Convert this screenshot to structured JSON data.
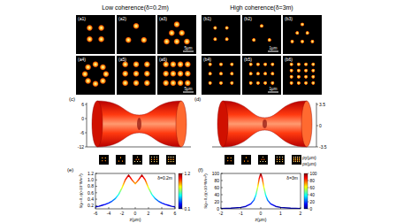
{
  "headers": [
    "Low coherence(δ=0.2m)",
    "High coherence(δ=3m)"
  ],
  "panels_a": {
    "labels": [
      "(a1)",
      "(a2)",
      "(a3)",
      "(a4)",
      "(a5)",
      "(a6)"
    ],
    "scale_bar": "5μm"
  },
  "panels_b": {
    "labels": [
      "(b1)",
      "(b2)",
      "(b3)",
      "(b4)",
      "(b5)",
      "(b6)"
    ],
    "scale_bar": "1μm"
  },
  "panel_c": {
    "label": "(c)",
    "ticks": [
      "6",
      "0",
      "-6",
      "-12"
    ]
  },
  "panel_d": {
    "label": "(d)",
    "ticks": [
      "3.5",
      "0",
      "-3.5"
    ],
    "axis_labels": [
      "ρy(μm)",
      "ρx(μm)"
    ]
  },
  "chart_data": [
    {
      "type": "line",
      "label": "(e)",
      "annotation": "δ=0.2m",
      "xlabel": "z(μm)",
      "ylabel": "S(ρ=0,z)(×10⁷W/m²)",
      "x": [
        -6,
        -5.5,
        -5,
        -4.5,
        -4,
        -3.5,
        -3,
        -2.5,
        -2,
        -1.5,
        -1,
        -0.5,
        0,
        0.5,
        1,
        1.5,
        2,
        2.5,
        3,
        3.5,
        4,
        4.5,
        5,
        5.5,
        6
      ],
      "values": [
        0.16,
        0.18,
        0.21,
        0.24,
        0.28,
        0.34,
        0.42,
        0.55,
        0.75,
        1.0,
        1.15,
        1.0,
        0.88,
        1.0,
        1.15,
        1.0,
        0.75,
        0.55,
        0.42,
        0.34,
        0.28,
        0.24,
        0.21,
        0.18,
        0.16
      ],
      "xlim": [
        -6,
        6
      ],
      "xticks": [
        -6,
        -4,
        -2,
        0,
        2,
        4,
        6
      ],
      "ylim": [
        0.1,
        1.2
      ],
      "yticks": [
        0.2,
        0.4,
        0.6,
        0.8,
        {
          "value": 1,
          "label": "1.0"
        },
        1.2
      ],
      "colorbar_range": [
        0.1,
        1.2
      ],
      "colorbar_ticks": [
        0.1,
        1.2
      ]
    },
    {
      "type": "line",
      "label": "(f)",
      "annotation": "δ=3m",
      "xlabel": "z(μm)",
      "ylabel": "S(ρ=0,z)(×10⁴W/m²)",
      "x": [
        -2,
        -1.5,
        -1,
        -0.75,
        -0.5,
        -0.35,
        -0.25,
        -0.15,
        -0.08,
        0,
        0.08,
        0.15,
        0.25,
        0.35,
        0.5,
        0.75,
        1,
        1.5,
        2
      ],
      "values": [
        1,
        2,
        4,
        7,
        14,
        24,
        38,
        62,
        85,
        100,
        85,
        62,
        38,
        24,
        14,
        7,
        4,
        2,
        1
      ],
      "xlim": [
        -2,
        2
      ],
      "xticks": [
        -2,
        -1,
        0,
        1,
        2
      ],
      "ylim": [
        0,
        100
      ],
      "yticks": [
        0,
        20,
        40,
        60,
        80,
        100
      ],
      "colorbar_range": [
        0,
        100
      ],
      "colorbar_ticks": [
        0,
        20,
        40,
        60,
        80,
        100
      ]
    }
  ]
}
